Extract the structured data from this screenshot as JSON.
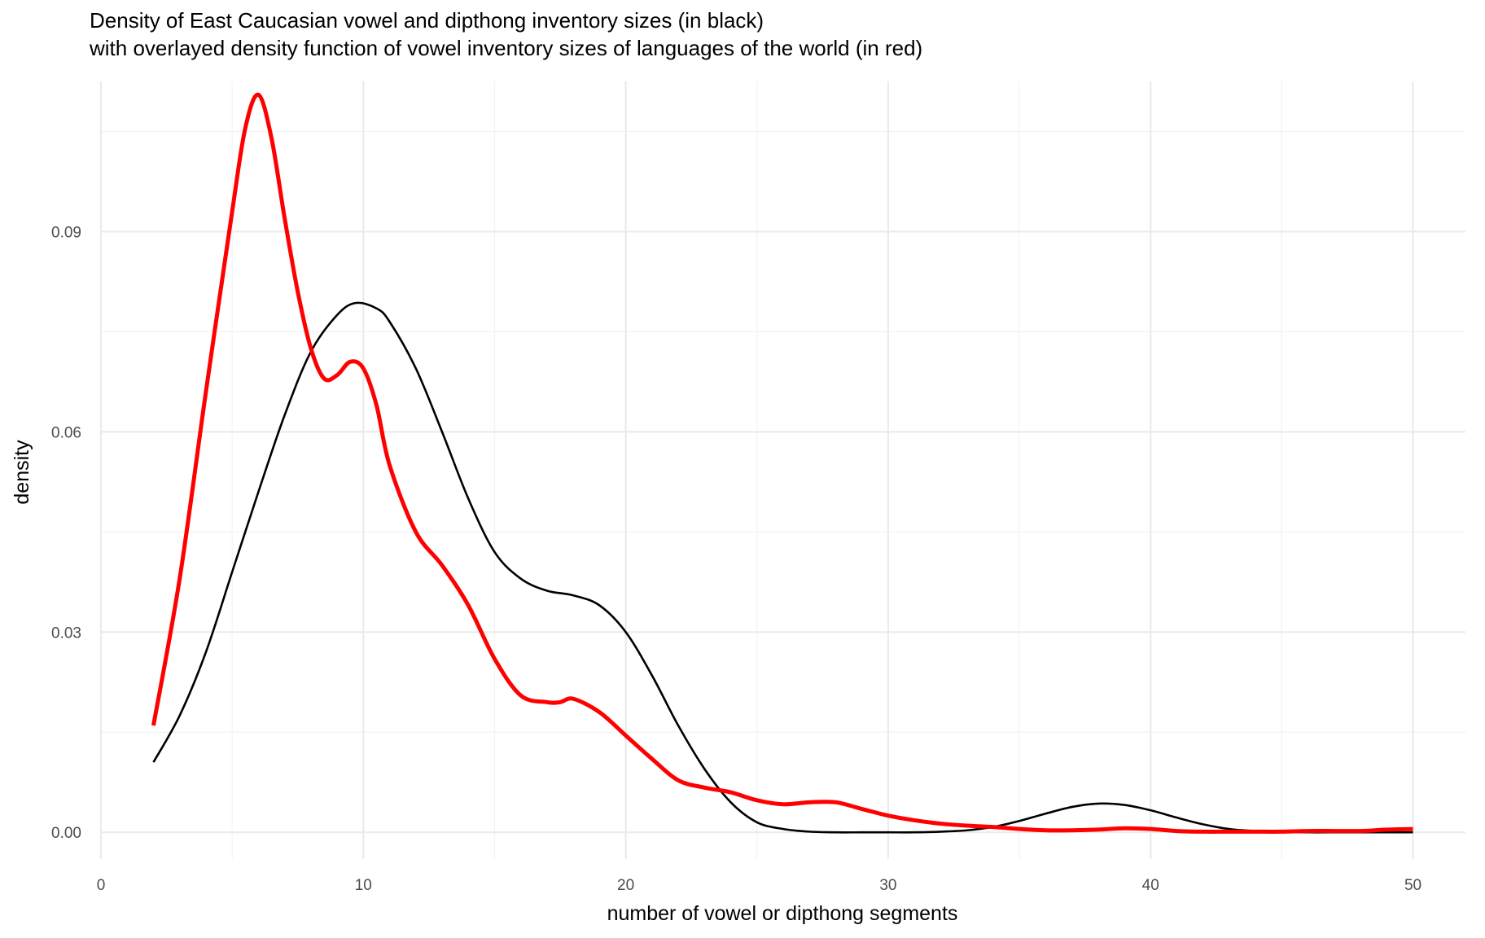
{
  "chart_data": {
    "type": "line",
    "title": "Density of East Caucasian vowel and dipthong inventory sizes (in black)",
    "subtitle": "with overlayed density function of vowel inventory sizes of languages of the world (in red)",
    "xlabel": "number of vowel or dipthong segments",
    "ylabel": "density",
    "xlim": [
      0,
      52
    ],
    "ylim": [
      -0.004,
      0.1125
    ],
    "x_ticks": [
      0,
      10,
      20,
      30,
      40,
      50
    ],
    "x_tick_labels": [
      "0",
      "10",
      "20",
      "30",
      "40",
      "50"
    ],
    "y_ticks": [
      0,
      0.03,
      0.06,
      0.09
    ],
    "y_tick_labels": [
      "0.00",
      "0.03",
      "0.06",
      "0.09"
    ],
    "grid": true,
    "legend": "none",
    "series": [
      {
        "color": "#000000",
        "x": [
          2,
          3,
          4,
          5,
          6,
          7,
          8,
          9,
          9.7,
          10.5,
          11,
          12,
          13,
          14,
          15,
          16,
          17,
          18,
          19,
          20,
          21,
          22,
          23,
          24,
          25,
          26,
          27,
          28,
          29,
          30,
          31,
          32,
          33,
          34,
          35,
          36,
          37,
          38,
          39,
          40,
          41,
          42,
          43,
          44,
          45,
          46,
          47,
          48,
          49,
          50
        ],
        "y": [
          0.0105,
          0.0175,
          0.027,
          0.039,
          0.051,
          0.0625,
          0.072,
          0.0775,
          0.0793,
          0.0785,
          0.0765,
          0.0695,
          0.06,
          0.05,
          0.042,
          0.038,
          0.0362,
          0.0355,
          0.034,
          0.03,
          0.0235,
          0.016,
          0.0095,
          0.0045,
          0.0015,
          0.0005,
          0.0001,
          0.0,
          0.0,
          0.0,
          0.0,
          0.0001,
          0.0003,
          0.0008,
          0.0017,
          0.0028,
          0.0038,
          0.0043,
          0.0041,
          0.0033,
          0.0022,
          0.0012,
          0.0005,
          0.0002,
          0.0001,
          0.0,
          0.0,
          0.0,
          0.0,
          0.0
        ]
      },
      {
        "color": "#ff0000",
        "x": [
          2,
          3,
          4,
          5,
          5.5,
          6,
          6.5,
          7,
          7.5,
          8,
          8.5,
          9,
          9.5,
          10,
          10.5,
          11,
          12,
          13,
          14,
          15,
          16,
          17,
          17.5,
          18,
          19,
          20,
          21,
          22,
          23,
          24,
          25,
          26,
          27,
          28,
          29,
          30,
          31,
          32,
          33,
          34,
          35,
          36,
          37,
          38,
          39,
          40,
          41,
          42,
          43,
          44,
          45,
          46,
          47,
          48,
          49,
          50
        ],
        "y": [
          0.016,
          0.038,
          0.066,
          0.093,
          0.1055,
          0.1105,
          0.104,
          0.092,
          0.081,
          0.0725,
          0.068,
          0.0685,
          0.0705,
          0.0695,
          0.064,
          0.055,
          0.045,
          0.04,
          0.034,
          0.026,
          0.0205,
          0.0195,
          0.0195,
          0.02,
          0.018,
          0.0145,
          0.011,
          0.0078,
          0.0067,
          0.006,
          0.0048,
          0.0042,
          0.0045,
          0.0045,
          0.0035,
          0.0025,
          0.0018,
          0.0013,
          0.001,
          0.0008,
          0.0005,
          0.0003,
          0.0003,
          0.0004,
          0.0006,
          0.0005,
          0.0002,
          0.0001,
          0.0001,
          0.0001,
          0.0001,
          0.0002,
          0.0002,
          0.0002,
          0.0004,
          0.0005
        ]
      }
    ]
  }
}
